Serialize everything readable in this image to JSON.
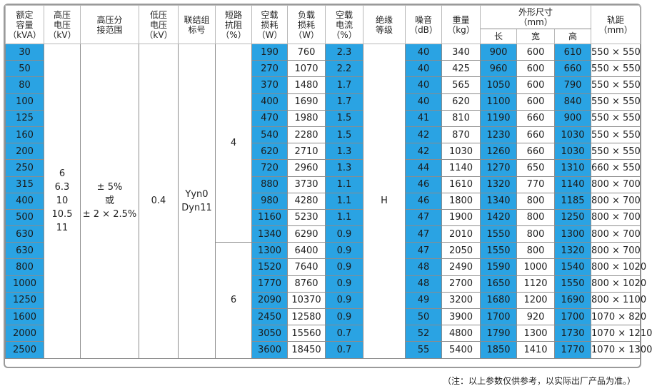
{
  "headers": {
    "capacity": "额定\n容量\n（kVA）",
    "hv": "高压\n电压\n（kV）",
    "tap": "高压分\n接范围",
    "lv": "低压\n电压\n（kV）",
    "vector": "联结组\n标号",
    "impedance": "短路\n抗阻\n（%）",
    "noload_loss": "空载\n损耗\n（W）",
    "load_loss": "负载\n损耗\n（W）",
    "noload_current": "空载\n电流\n（%）",
    "insulation": "绝缘\n等级",
    "noise": "噪音\n（dB）",
    "weight": "重量\n（kg）",
    "dimensions": "外形尺寸\n（mm）",
    "dim_l": "长",
    "dim_w": "宽",
    "dim_h": "高",
    "gauge": "轨距\n（mm）"
  },
  "merged": {
    "hv_values": [
      "6",
      "6.3",
      "10",
      "10.5",
      "11"
    ],
    "tap_values": [
      "± 5%",
      "或",
      "± 2 × 2.5%"
    ],
    "lv_value": "0.4",
    "vector_values": [
      "Yyn0",
      "Dyn11"
    ],
    "impedance_1": "4",
    "impedance_2": "6",
    "insulation": "H"
  },
  "rows": [
    {
      "cap": "30",
      "nl": "190",
      "ll": "760",
      "cur": "2.3",
      "noise": "40",
      "wt": "340",
      "l": "900",
      "w": "600",
      "h": "610",
      "g": "550 × 550"
    },
    {
      "cap": "50",
      "nl": "270",
      "ll": "1070",
      "cur": "2.2",
      "noise": "40",
      "wt": "425",
      "l": "960",
      "w": "600",
      "h": "660",
      "g": "550 × 550"
    },
    {
      "cap": "80",
      "nl": "370",
      "ll": "1480",
      "cur": "1.7",
      "noise": "40",
      "wt": "565",
      "l": "1050",
      "w": "600",
      "h": "790",
      "g": "550 × 550"
    },
    {
      "cap": "100",
      "nl": "400",
      "ll": "1690",
      "cur": "1.7",
      "noise": "40",
      "wt": "620",
      "l": "1100",
      "w": "600",
      "h": "840",
      "g": "550 × 550"
    },
    {
      "cap": "125",
      "nl": "470",
      "ll": "1980",
      "cur": "1.5",
      "noise": "41",
      "wt": "810",
      "l": "1190",
      "w": "660",
      "h": "900",
      "g": "550 × 550"
    },
    {
      "cap": "160",
      "nl": "540",
      "ll": "2280",
      "cur": "1.5",
      "noise": "42",
      "wt": "870",
      "l": "1230",
      "w": "660",
      "h": "1030",
      "g": "550 × 550"
    },
    {
      "cap": "200",
      "nl": "620",
      "ll": "2710",
      "cur": "1.3",
      "noise": "42",
      "wt": "1030",
      "l": "1260",
      "w": "660",
      "h": "1030",
      "g": "550 × 550"
    },
    {
      "cap": "250",
      "nl": "720",
      "ll": "2960",
      "cur": "1.3",
      "noise": "44",
      "wt": "1140",
      "l": "1270",
      "w": "650",
      "h": "1310",
      "g": "660 × 550"
    },
    {
      "cap": "315",
      "nl": "880",
      "ll": "3730",
      "cur": "1.1",
      "noise": "46",
      "wt": "1610",
      "l": "1320",
      "w": "770",
      "h": "1140",
      "g": "800 × 700"
    },
    {
      "cap": "400",
      "nl": "980",
      "ll": "4280",
      "cur": "1.1",
      "noise": "46",
      "wt": "1800",
      "l": "1340",
      "w": "800",
      "h": "1185",
      "g": "800 × 700"
    },
    {
      "cap": "500",
      "nl": "1160",
      "ll": "5230",
      "cur": "1.1",
      "noise": "47",
      "wt": "1900",
      "l": "1420",
      "w": "800",
      "h": "1250",
      "g": "800 × 700"
    },
    {
      "cap": "630",
      "nl": "1340",
      "ll": "6290",
      "cur": "0.9",
      "noise": "47",
      "wt": "2010",
      "l": "1550",
      "w": "800",
      "h": "1300",
      "g": "800 × 700"
    },
    {
      "cap": "630",
      "nl": "1300",
      "ll": "6400",
      "cur": "0.9",
      "noise": "47",
      "wt": "2050",
      "l": "1550",
      "w": "800",
      "h": "1320",
      "g": "800 × 700"
    },
    {
      "cap": "800",
      "nl": "1520",
      "ll": "7640",
      "cur": "0.9",
      "noise": "48",
      "wt": "2490",
      "l": "1590",
      "w": "1000",
      "h": "1540",
      "g": "800 × 1020"
    },
    {
      "cap": "1000",
      "nl": "1770",
      "ll": "8760",
      "cur": "0.9",
      "noise": "48",
      "wt": "2700",
      "l": "1650",
      "w": "1120",
      "h": "1550",
      "g": "800 × 1020"
    },
    {
      "cap": "1250",
      "nl": "2090",
      "ll": "10370",
      "cur": "0.9",
      "noise": "49",
      "wt": "3200",
      "l": "1680",
      "w": "1200",
      "h": "1690",
      "g": "800 × 1100"
    },
    {
      "cap": "1600",
      "nl": "2450",
      "ll": "12580",
      "cur": "0.9",
      "noise": "50",
      "wt": "3900",
      "l": "1700",
      "w": "920",
      "h": "1700",
      "g": "1070 × 820"
    },
    {
      "cap": "2000",
      "nl": "3050",
      "ll": "15560",
      "cur": "0.7",
      "noise": "52",
      "wt": "4800",
      "l": "1790",
      "w": "1300",
      "h": "1730",
      "g": "1070 × 1210"
    },
    {
      "cap": "2500",
      "nl": "3600",
      "ll": "18450",
      "cur": "0.7",
      "noise": "55",
      "wt": "5400",
      "l": "1850",
      "w": "1410",
      "h": "1770",
      "g": "1070 × 1300"
    }
  ],
  "note": "（注：以上参数仅供参考，以实际出厂产品为准。）",
  "colors": {
    "accent_blue": "#2aa3e3",
    "border": "#8c8c8c"
  }
}
